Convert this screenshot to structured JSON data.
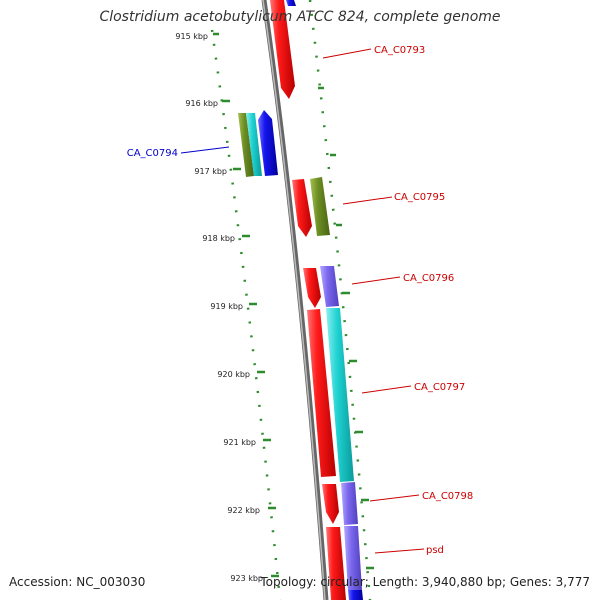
{
  "title": "Clostridium acetobutylicum ATCC 824, complete genome",
  "footer": {
    "accession": "Accession: NC_003030",
    "topology": "Topology: circular; Length: 3,940,880 bp; Genes: 3,777"
  },
  "colors": {
    "backbone": "#7a7a7a",
    "ticks": "#2e8b2e",
    "red": "#ee1111",
    "blue": "#1010dd",
    "cyan": "#18c8c8",
    "olive": "#6b8e23",
    "purple": "#7b68ee",
    "label_red": "#cc0000",
    "label_blue": "#0000cc"
  },
  "ticks": [
    "915 kbp",
    "916 kbp",
    "917 kbp",
    "918 kbp",
    "919 kbp",
    "920 kbp",
    "921 kbp",
    "922 kbp",
    "923 kbp"
  ],
  "gene_labels": [
    {
      "text": "CA_C0793",
      "color": "label_red"
    },
    {
      "text": "CA_C0794",
      "color": "label_blue"
    },
    {
      "text": "CA_C0795",
      "color": "label_red"
    },
    {
      "text": "CA_C0796",
      "color": "label_red"
    },
    {
      "text": "CA_C0797",
      "color": "label_red"
    },
    {
      "text": "CA_C0798",
      "color": "label_red"
    },
    {
      "text": "psd",
      "color": "label_red"
    }
  ]
}
